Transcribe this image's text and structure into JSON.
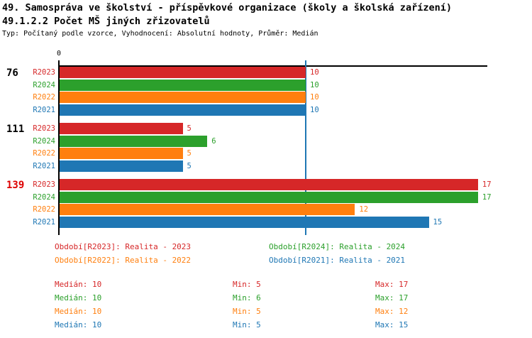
{
  "header": {
    "title": "49. Samospráva ve školství - příspěvkové organizace (školy a školská zařízení)",
    "subtitle": "49.1.2.2 Počet MŠ jiných zřizovatelů",
    "meta": "Typ: Počítaný podle vzorce, Vyhodnocení: Absolutní hodnoty, Průměr: Medián"
  },
  "colors": {
    "r2023": "#d62728",
    "r2024": "#2ca02c",
    "r2022": "#ff7f0e",
    "r2021": "#1f77b4",
    "axis": "#000000",
    "median_line": "#1f77b4",
    "highlighted_group": "#dd0000"
  },
  "chart_data": {
    "type": "bar",
    "orientation": "horizontal",
    "title": "49.1.2.2 Počet MŠ jiných zřizovatelů",
    "categories": [
      "76",
      "111",
      "139"
    ],
    "category_colors": [
      "#000000",
      "#000000",
      "#dd0000"
    ],
    "series": [
      {
        "name": "R2023",
        "color": "#d62728",
        "values": [
          10,
          5,
          17
        ]
      },
      {
        "name": "R2024",
        "color": "#2ca02c",
        "values": [
          10,
          6,
          17
        ]
      },
      {
        "name": "R2022",
        "color": "#ff7f0e",
        "values": [
          10,
          5,
          12
        ]
      },
      {
        "name": "R2021",
        "color": "#1f77b4",
        "values": [
          10,
          5,
          15
        ]
      }
    ],
    "x_axis": {
      "origin_label": "0",
      "xlim": [
        0,
        17.4
      ],
      "median_line_at": 10,
      "grid": false
    },
    "legend_position": "bottom",
    "value_labels": true
  },
  "legend": {
    "items": [
      {
        "label": "Období[R2023]: Realita - 2023",
        "color": "#d62728"
      },
      {
        "label": "Období[R2024]: Realita - 2024",
        "color": "#2ca02c"
      },
      {
        "label": "Období[R2022]: Realita - 2022",
        "color": "#ff7f0e"
      },
      {
        "label": "Období[R2021]: Realita - 2021",
        "color": "#1f77b4"
      }
    ]
  },
  "stats": {
    "rows": [
      {
        "color": "#d62728",
        "median": "Medián: 10",
        "min": "Min: 5",
        "max": "Max: 17"
      },
      {
        "color": "#2ca02c",
        "median": "Medián: 10",
        "min": "Min: 6",
        "max": "Max: 17"
      },
      {
        "color": "#ff7f0e",
        "median": "Medián: 10",
        "min": "Min: 5",
        "max": "Max: 12"
      },
      {
        "color": "#1f77b4",
        "median": "Medián: 10",
        "min": "Min: 5",
        "max": "Max: 15"
      }
    ]
  }
}
